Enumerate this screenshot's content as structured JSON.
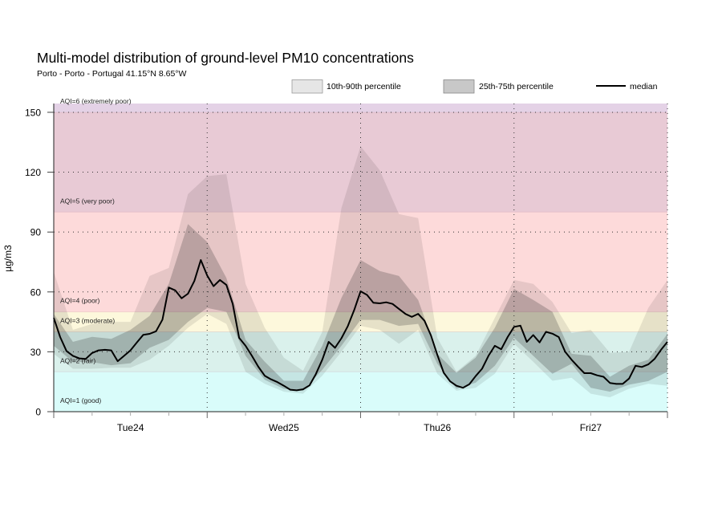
{
  "chart_data": {
    "type": "area",
    "title": "Multi-model distribution of ground-level PM10 concentrations",
    "subtitle": "Porto - Porto - Portugal 41.15°N 8.65°W",
    "xlabel": "",
    "ylabel": "µg/m3",
    "ylim": [
      0,
      154.4
    ],
    "yticks": [
      0,
      30,
      60,
      90,
      120,
      150
    ],
    "ytick_labels": [
      "0",
      "30",
      "60",
      "90",
      "120",
      "150"
    ],
    "xlim_hours": [
      0,
      96
    ],
    "x_major_tick_every_hours": 24,
    "x_minor_tick_every_hours": 6,
    "xtick_labels": [
      "Tue24",
      "Wed25",
      "Thu26",
      "Fri27"
    ],
    "grid": {
      "y": true,
      "x": true,
      "style": "dotted"
    },
    "legend_position": "top-right",
    "legend": [
      {
        "label": "10th-90th percentile",
        "kind": "area",
        "color": "#e6e6e6"
      },
      {
        "label": "25th-75th percentile",
        "kind": "area",
        "color": "#c8c8c8"
      },
      {
        "label": "median",
        "kind": "line",
        "color": "#000000"
      }
    ],
    "aqi_bands": [
      {
        "label": "AQI=1 (good)",
        "min": 0,
        "max": 20,
        "color": "#d9fcfa"
      },
      {
        "label": "AQI=2 (fair)",
        "min": 20,
        "max": 40,
        "color": "#daf1ec"
      },
      {
        "label": "AQI=3 (moderate)",
        "min": 40,
        "max": 50,
        "color": "#fdf8dc"
      },
      {
        "label": "AQI=4 (poor)",
        "min": 50,
        "max": 100,
        "color": "#fddada"
      },
      {
        "label": "AQI=5 (very poor)",
        "min": 100,
        "max": 150,
        "color": "#e8cad5"
      },
      {
        "label": "AQI=6 (extremely poor)",
        "min": 150,
        "max": 154.4,
        "color": "#e4d2e6"
      }
    ],
    "series": [
      {
        "name": "10th-90th percentile",
        "kind": "band",
        "x_start_hours": 0,
        "x_step_hours": 3,
        "lower": [
          29,
          21.5,
          21.5,
          22,
          22,
          26,
          33,
          42,
          49,
          44,
          20,
          14,
          10,
          9,
          18,
          30,
          43,
          41,
          34,
          41,
          19,
          10.5,
          12,
          19,
          34,
          25,
          15.5,
          17,
          9,
          7.2,
          11.5,
          14,
          13
        ],
        "upper": [
          70,
          41,
          44,
          45,
          45,
          68,
          72,
          109,
          118,
          119,
          64,
          42,
          27,
          20.5,
          40,
          102,
          133,
          121,
          99,
          97,
          37,
          20,
          28,
          47,
          66,
          64,
          55,
          39.4,
          41,
          29.5,
          30,
          52,
          66
        ]
      },
      {
        "name": "25th-75th percentile",
        "kind": "band",
        "x_start_hours": 0,
        "x_step_hours": 3,
        "lower": [
          33,
          25,
          24.8,
          23.3,
          24.3,
          32,
          36,
          45,
          52,
          50,
          28,
          16,
          11.4,
          10.5,
          21,
          33,
          46,
          46,
          43,
          44,
          24,
          11.5,
          14.5,
          23,
          37,
          28,
          19,
          24,
          12,
          10,
          13.5,
          15.3,
          20
        ],
        "upper": [
          49,
          35,
          37.5,
          36.5,
          41,
          48,
          64,
          94,
          85,
          67,
          36,
          25,
          15.5,
          15.5,
          33,
          57,
          76,
          70.5,
          68,
          56,
          29,
          19.5,
          27,
          42,
          61.5,
          56,
          50,
          29,
          28,
          17.5,
          23,
          26,
          39
        ]
      },
      {
        "name": "median",
        "kind": "line",
        "x_start_hours": 0,
        "x_step_hours": 1,
        "values": [
          47,
          37.4,
          30.4,
          28,
          26.7,
          26.4,
          29.4,
          30.7,
          31,
          30.7,
          25.3,
          28,
          30.7,
          34.7,
          38.5,
          39,
          40.3,
          46.1,
          62.2,
          60.8,
          56.8,
          59.1,
          65.5,
          76,
          68.2,
          62.9,
          66,
          63.5,
          54,
          37,
          33,
          28,
          22.5,
          18,
          16.2,
          14.8,
          13,
          11,
          10.7,
          11.2,
          13.2,
          18.8,
          26,
          35,
          32,
          36.8,
          42.9,
          50.9,
          60.3,
          58.5,
          54.6,
          54.3,
          54.8,
          54,
          51.5,
          49,
          47.5,
          49,
          45.5,
          38.2,
          28.5,
          19.5,
          15.2,
          13,
          12,
          13.7,
          17.8,
          21.5,
          28,
          33,
          31.3,
          37.4,
          42.5,
          43.1,
          35,
          38.4,
          34.7,
          40,
          39.1,
          37.4,
          30,
          26,
          22.6,
          19.3,
          19.3,
          18.2,
          17.5,
          14.4,
          13.9,
          13.9,
          16.6,
          23,
          22.4,
          23.7,
          26.5,
          31,
          35
        ]
      }
    ]
  }
}
